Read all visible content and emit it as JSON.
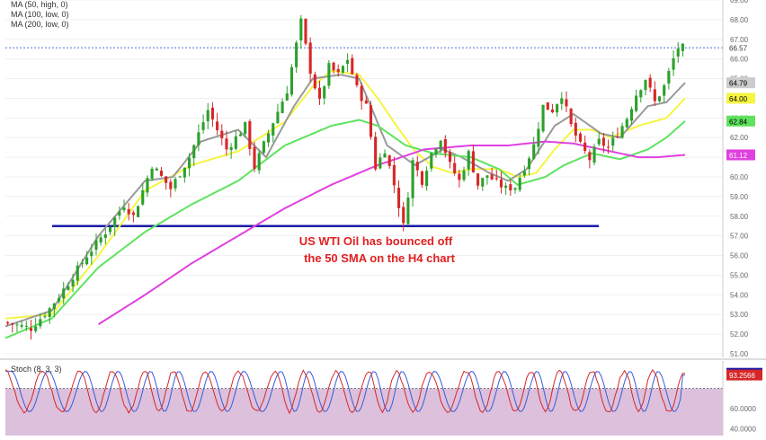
{
  "legend": {
    "main": [
      "MA (50, high, 0)",
      "MA (100, low, 0)",
      "MA (200, low, 0)"
    ],
    "stoch_label": "Stoch (8, 3, 3)"
  },
  "annotation": {
    "line1": "US WTI Oil has bounced off",
    "line2": "the 50 SMA on the H4 chart"
  },
  "colors": {
    "up_candle": "#2ca02c",
    "down_candle": "#d62728",
    "ma50": "#f5f542",
    "ma100": "#999999",
    "ma200_green": "#5fe35f",
    "ma_magenta": "#e040e0",
    "support_line": "#1a1aa8",
    "annotation_text": "#e02020",
    "stoch_bg": "#dcc0dc",
    "stoch_k": "#d62728",
    "stoch_d": "#3b5bdb"
  },
  "chart_data": [
    {
      "type": "candlestick",
      "title": "",
      "ylim": [
        51,
        69
      ],
      "yticks": [
        "69.00",
        "68.00",
        "67.00",
        "66.00",
        "65.00",
        "64.00",
        "63.00",
        "62.00",
        "61.00",
        "60.00",
        "59.00",
        "58.00",
        "57.00",
        "56.00",
        "55.00",
        "54.00",
        "53.00",
        "52.00",
        "51.00"
      ],
      "price_labels": [
        {
          "value": "66.57",
          "bg": "#ffffff",
          "fg": "#333333"
        },
        {
          "value": "64.79",
          "bg": "#cccccc",
          "fg": "#000000"
        },
        {
          "value": "64.00",
          "bg": "#f5f542",
          "fg": "#000000"
        },
        {
          "value": "62.84",
          "bg": "#5fe35f",
          "fg": "#000000"
        },
        {
          "value": "61.12",
          "bg": "#e040e0",
          "fg": "#ffffff"
        }
      ],
      "current_price": 66.57,
      "support_level": 57.5,
      "close_path": [
        [
          0,
          52.6
        ],
        [
          6,
          52.3
        ],
        [
          10,
          53.3
        ],
        [
          14,
          54.6
        ],
        [
          18,
          56.0
        ],
        [
          22,
          57.2
        ],
        [
          26,
          58.6
        ],
        [
          28,
          58.0
        ],
        [
          32,
          60.6
        ],
        [
          36,
          59.4
        ],
        [
          40,
          61.0
        ],
        [
          44,
          63.4
        ],
        [
          48,
          61.4
        ],
        [
          52,
          62.6
        ],
        [
          54,
          60.5
        ],
        [
          58,
          62.8
        ],
        [
          61,
          64.4
        ],
        [
          64,
          67.9
        ],
        [
          66,
          65.4
        ],
        [
          68,
          63.8
        ],
        [
          70,
          65.6
        ],
        [
          72,
          65.2
        ],
        [
          74,
          66.0
        ],
        [
          76,
          64.5
        ],
        [
          78,
          63.6
        ],
        [
          80,
          60.5
        ],
        [
          82,
          61.4
        ],
        [
          84,
          59.6
        ],
        [
          86,
          57.5
        ],
        [
          88,
          60.8
        ],
        [
          90,
          59.8
        ],
        [
          92,
          61.2
        ],
        [
          94,
          62.0
        ],
        [
          96,
          60.6
        ],
        [
          98,
          59.8
        ],
        [
          100,
          61.2
        ],
        [
          102,
          59.6
        ],
        [
          104,
          60.1
        ],
        [
          106,
          59.7
        ],
        [
          108,
          59.4
        ],
        [
          110,
          59.5
        ],
        [
          112,
          60.5
        ],
        [
          114,
          61.6
        ],
        [
          116,
          63.6
        ],
        [
          118,
          63.4
        ],
        [
          120,
          64.2
        ],
        [
          122,
          62.6
        ],
        [
          124,
          61.6
        ],
        [
          126,
          60.9
        ],
        [
          128,
          61.8
        ],
        [
          130,
          61.5
        ],
        [
          132,
          62.2
        ],
        [
          134,
          63.0
        ],
        [
          136,
          64.2
        ],
        [
          138,
          65.0
        ],
        [
          140,
          63.8
        ],
        [
          142,
          64.6
        ],
        [
          144,
          66.0
        ],
        [
          145,
          66.57
        ]
      ],
      "ma_series": [
        {
          "values": [
            [
              0,
              52.8
            ],
            [
              10,
              53.0
            ],
            [
              20,
              56.0
            ],
            [
              30,
              59.3
            ],
            [
              40,
              60.6
            ],
            [
              50,
              61.3
            ],
            [
              60,
              62.8
            ],
            [
              66,
              64.6
            ],
            [
              70,
              65.4
            ],
            [
              76,
              65.2
            ],
            [
              80,
              64.0
            ],
            [
              84,
              62.6
            ],
            [
              88,
              61.3
            ],
            [
              92,
              60.5
            ],
            [
              96,
              60.2
            ],
            [
              100,
              60.4
            ],
            [
              106,
              60.4
            ],
            [
              110,
              60.0
            ],
            [
              114,
              60.2
            ],
            [
              118,
              61.4
            ],
            [
              122,
              62.4
            ],
            [
              126,
              62.4
            ],
            [
              130,
              62.0
            ],
            [
              136,
              62.6
            ],
            [
              142,
              63.0
            ],
            [
              146,
              64.0
            ]
          ]
        },
        {
          "values": [
            [
              0,
              52.4
            ],
            [
              10,
              53.2
            ],
            [
              20,
              57.0
            ],
            [
              30,
              59.8
            ],
            [
              36,
              60.0
            ],
            [
              42,
              61.8
            ],
            [
              50,
              62.4
            ],
            [
              56,
              61.0
            ],
            [
              62,
              63.6
            ],
            [
              66,
              65.0
            ],
            [
              72,
              65.2
            ],
            [
              76,
              65.0
            ],
            [
              82,
              61.6
            ],
            [
              88,
              60.6
            ],
            [
              94,
              61.4
            ],
            [
              98,
              61.0
            ],
            [
              104,
              60.2
            ],
            [
              108,
              59.8
            ],
            [
              112,
              60.4
            ],
            [
              118,
              62.6
            ],
            [
              122,
              63.2
            ],
            [
              128,
              62.2
            ],
            [
              132,
              62.0
            ],
            [
              138,
              63.6
            ],
            [
              142,
              63.8
            ],
            [
              146,
              64.79
            ]
          ]
        },
        {
          "values": [
            [
              0,
              51.8
            ],
            [
              10,
              52.8
            ],
            [
              20,
              55.4
            ],
            [
              30,
              57.2
            ],
            [
              40,
              58.6
            ],
            [
              50,
              59.8
            ],
            [
              60,
              61.6
            ],
            [
              70,
              62.6
            ],
            [
              76,
              62.9
            ],
            [
              80,
              62.6
            ],
            [
              86,
              61.6
            ],
            [
              92,
              61.2
            ],
            [
              100,
              61.0
            ],
            [
              106,
              60.4
            ],
            [
              110,
              59.6
            ],
            [
              116,
              60.0
            ],
            [
              120,
              60.6
            ],
            [
              126,
              61.2
            ],
            [
              132,
              60.9
            ],
            [
              138,
              61.4
            ],
            [
              142,
              62.0
            ],
            [
              146,
              62.84
            ]
          ]
        },
        {
          "values": [
            [
              20,
              52.5
            ],
            [
              30,
              54.0
            ],
            [
              40,
              55.6
            ],
            [
              50,
              57.0
            ],
            [
              60,
              58.4
            ],
            [
              70,
              59.6
            ],
            [
              80,
              60.6
            ],
            [
              90,
              61.4
            ],
            [
              100,
              61.6
            ],
            [
              108,
              61.6
            ],
            [
              116,
              61.8
            ],
            [
              122,
              61.7
            ],
            [
              128,
              61.4
            ],
            [
              136,
              61.0
            ],
            [
              140,
              61.0
            ],
            [
              146,
              61.12
            ]
          ]
        }
      ],
      "x_count": 146
    },
    {
      "type": "line",
      "title": "",
      "ylim": [
        0,
        100
      ],
      "yticks": [
        "60.0000",
        "40.0000"
      ],
      "overbought": 80,
      "value_labels": [
        {
          "value": "94.9595",
          "bg": "#1a1aa8",
          "fg": "#ffffff"
        },
        {
          "value": "93.2566",
          "bg": "#d62728",
          "fg": "#ffffff"
        }
      ],
      "cycle_peaks": [
        0,
        8,
        16,
        23,
        30,
        36,
        43,
        50,
        58,
        64,
        71,
        78,
        84,
        91,
        99,
        106,
        113,
        119,
        126,
        133,
        139,
        146
      ],
      "final_values": {
        "k": 94.9595,
        "d": 93.2566
      }
    }
  ]
}
